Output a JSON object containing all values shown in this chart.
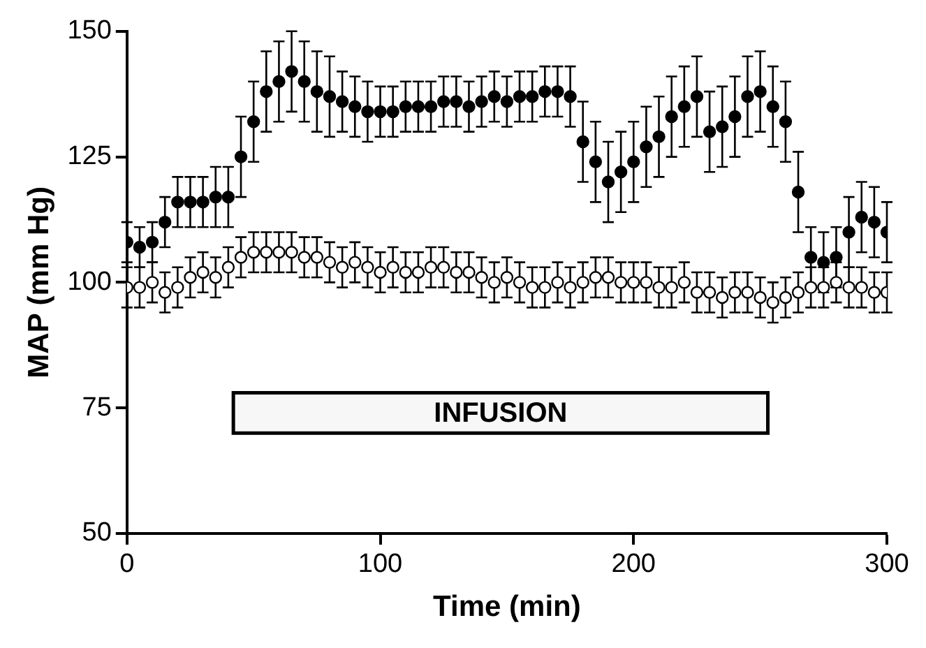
{
  "chart_data": {
    "type": "scatter",
    "xlabel": "Time (min)",
    "ylabel": "MAP (mm Hg)",
    "xlim": [
      0,
      300
    ],
    "ylim": [
      50,
      150
    ],
    "xticks": [
      0,
      100,
      200,
      300
    ],
    "yticks": [
      50,
      75,
      100,
      125,
      150
    ],
    "grid": false,
    "legend": false,
    "marker": "circle",
    "bands": [
      {
        "axis": "x",
        "from": 42,
        "to": 253,
        "label": "INFUSION",
        "color": "#f7f7f7"
      }
    ],
    "series": [
      {
        "color": "#000000",
        "x": [
          0,
          5,
          10,
          15,
          20,
          25,
          30,
          35,
          40,
          45,
          50,
          55,
          60,
          65,
          70,
          75,
          80,
          85,
          90,
          95,
          100,
          105,
          110,
          115,
          120,
          125,
          130,
          135,
          140,
          145,
          150,
          155,
          160,
          165,
          170,
          175,
          180,
          185,
          190,
          195,
          200,
          205,
          210,
          215,
          220,
          225,
          230,
          235,
          240,
          245,
          250,
          255,
          260,
          265,
          270,
          275,
          280,
          285,
          290,
          295,
          300
        ],
        "values": [
          108,
          107,
          108,
          112,
          116,
          116,
          116,
          117,
          117,
          125,
          132,
          138,
          140,
          142,
          140,
          138,
          137,
          136,
          135,
          134,
          134,
          134,
          135,
          135,
          135,
          136,
          136,
          135,
          136,
          137,
          136,
          137,
          137,
          138,
          138,
          137,
          128,
          124,
          120,
          122,
          124,
          127,
          129,
          133,
          135,
          137,
          130,
          131,
          133,
          137,
          138,
          135,
          132,
          118,
          105,
          104,
          105,
          110,
          113,
          112,
          110
        ],
        "errors": [
          4,
          4,
          4,
          5,
          5,
          5,
          5,
          6,
          6,
          8,
          8,
          8,
          8,
          8,
          8,
          8,
          8,
          6,
          6,
          6,
          5,
          5,
          5,
          5,
          5,
          5,
          5,
          5,
          5,
          5,
          5,
          5,
          5,
          5,
          5,
          6,
          8,
          8,
          8,
          8,
          8,
          8,
          8,
          8,
          8,
          8,
          8,
          8,
          8,
          8,
          8,
          8,
          8,
          8,
          6,
          6,
          6,
          7,
          7,
          7,
          6
        ]
      },
      {
        "color": "#ffffff",
        "x": [
          0,
          5,
          10,
          15,
          20,
          25,
          30,
          35,
          40,
          45,
          50,
          55,
          60,
          65,
          70,
          75,
          80,
          85,
          90,
          95,
          100,
          105,
          110,
          115,
          120,
          125,
          130,
          135,
          140,
          145,
          150,
          155,
          160,
          165,
          170,
          175,
          180,
          185,
          190,
          195,
          200,
          205,
          210,
          215,
          220,
          225,
          230,
          235,
          240,
          245,
          250,
          255,
          260,
          265,
          270,
          275,
          280,
          285,
          290,
          295,
          300
        ],
        "values": [
          99,
          99,
          100,
          98,
          99,
          101,
          102,
          101,
          103,
          105,
          106,
          106,
          106,
          106,
          105,
          105,
          104,
          103,
          104,
          103,
          102,
          103,
          102,
          102,
          103,
          103,
          102,
          102,
          101,
          100,
          101,
          100,
          99,
          99,
          100,
          99,
          100,
          101,
          101,
          100,
          100,
          100,
          99,
          99,
          100,
          98,
          98,
          97,
          98,
          98,
          97,
          96,
          97,
          98,
          99,
          99,
          100,
          99,
          99,
          98,
          98
        ],
        "errors": [
          4,
          4,
          4,
          4,
          4,
          4,
          4,
          4,
          4,
          4,
          4,
          4,
          4,
          4,
          4,
          4,
          4,
          4,
          4,
          4,
          4,
          4,
          4,
          4,
          4,
          4,
          4,
          4,
          4,
          4,
          4,
          4,
          4,
          4,
          4,
          4,
          4,
          4,
          4,
          4,
          4,
          4,
          4,
          4,
          4,
          4,
          4,
          4,
          4,
          4,
          4,
          4,
          4,
          4,
          4,
          4,
          4,
          4,
          4,
          4,
          4
        ]
      }
    ]
  }
}
